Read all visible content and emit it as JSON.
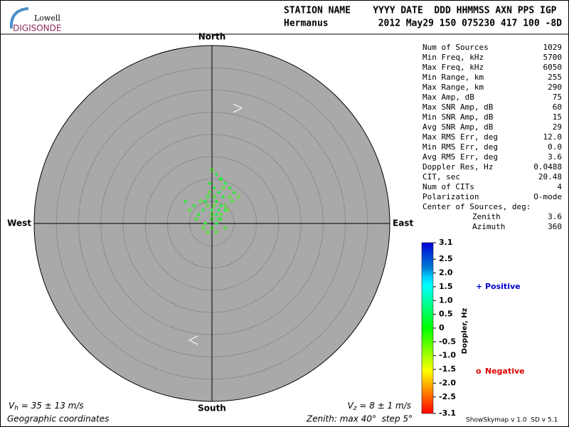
{
  "header": {
    "logo_top": "Lowell",
    "logo_bottom": "DIGISONDE",
    "columns_line": "STATION NAME    YYYY DATE  DDD HHMMSS AXN PPS IGP",
    "station": "Hermanus",
    "values_line": "2012 May29 150 075230 417 100 -8D"
  },
  "stats": [
    {
      "label": "Num of Sources",
      "value": "1029"
    },
    {
      "label": "Min Freq, kHz",
      "value": "5700"
    },
    {
      "label": "Max Freq, kHz",
      "value": "6050"
    },
    {
      "label": "Min Range, km",
      "value": "255"
    },
    {
      "label": "Max Range, km",
      "value": "290"
    },
    {
      "label": "Max Amp, dB",
      "value": "75"
    },
    {
      "label": "Max SNR Amp, dB",
      "value": "60"
    },
    {
      "label": "Min SNR Amp, dB",
      "value": "15"
    },
    {
      "label": "Avg SNR Amp, dB",
      "value": "29"
    },
    {
      "label": "Max RMS Err, deg",
      "value": "12.0"
    },
    {
      "label": "Min RMS Err, deg",
      "value": "0.0"
    },
    {
      "label": "Avg RMS Err, deg",
      "value": "3.6"
    },
    {
      "label": "Doppler Res, Hz",
      "value": "0.0488"
    },
    {
      "label": "CIT, sec",
      "value": "20.48"
    },
    {
      "label": "Num of CITs",
      "value": "4"
    },
    {
      "label": "Polarization",
      "value": "O-mode"
    }
  ],
  "center": {
    "title": "Center of Sources, deg:",
    "zenith_label": "Zenith",
    "zenith": "3.6",
    "azimuth_label": "Azimuth",
    "azimuth": "360"
  },
  "footer": {
    "vh_symbol": "V",
    "vh_sub": "h",
    "vh_text": " = 35 ± 13 m/s",
    "vz_symbol": "V",
    "vz_sub": "z",
    "vz_text": " = 8 ± 1 m/s",
    "coords": "Geographic coordinates",
    "zenith_note": "Zenith: max 40°  step 5°",
    "version": "ShowSkymap v 1.0  SD v 5.1"
  },
  "chart_data": {
    "type": "skymap",
    "directions": {
      "north": "North",
      "south": "South",
      "west": "West",
      "east": "East"
    },
    "rlim": [
      0,
      40
    ],
    "rticks": [
      5,
      10,
      15,
      20,
      25,
      30,
      35,
      40
    ],
    "x": [
      0,
      -1,
      1,
      2,
      -2,
      0.5,
      1.5,
      3,
      -3,
      2.5,
      -1.5,
      0,
      1,
      4,
      -4,
      2,
      -0.5,
      3.5,
      5,
      -5,
      1,
      0,
      2,
      -2.5,
      3,
      -1,
      0.5,
      4.5,
      1.5,
      -3.5,
      2.5,
      0,
      -1.5,
      3,
      1,
      -0.5,
      2,
      6,
      -6,
      1,
      3,
      0,
      2,
      -1,
      4,
      0.5,
      1.5,
      -2
    ],
    "y": [
      3,
      4,
      5,
      2,
      3,
      6,
      7,
      4,
      2,
      8,
      5,
      1,
      0,
      6,
      4,
      10,
      9,
      3,
      7,
      3,
      11,
      -1,
      1,
      5,
      9,
      -2,
      8,
      5,
      3,
      1,
      6,
      12,
      0,
      -1,
      2,
      7,
      4,
      6,
      5,
      -2,
      3,
      2,
      10,
      6,
      8,
      4,
      1,
      -1
    ],
    "doppler": [
      0.2,
      -0.3,
      0.1,
      -0.4,
      0.3,
      -0.2,
      0.2,
      -0.3,
      0.1,
      -0.4,
      0.2,
      -0.1,
      0.3,
      -0.3,
      0.2,
      -0.2,
      0.1,
      -0.5,
      0.2,
      -0.3,
      0.3,
      -0.2,
      0.1,
      -0.4,
      0.2,
      -0.3,
      0.1,
      -0.2,
      0.3,
      -0.1,
      0.2,
      -0.3,
      0.1,
      -0.2,
      0.4,
      -0.3,
      0.2,
      -0.4,
      0.1,
      -0.2,
      0.3,
      -0.3,
      0.2,
      -0.1,
      0.1,
      -0.4,
      0.2,
      -0.3
    ],
    "colorbar": {
      "label": "Doppler, Hz",
      "lim": [
        -3.1,
        3.1
      ],
      "ticks": [
        3.1,
        2.5,
        {
          "value": 2,
          "label": "2.0"
        },
        1.5,
        {
          "value": 1,
          "label": "1.0"
        },
        0.5,
        0,
        -0.5,
        {
          "value": -1,
          "label": "-1.0"
        },
        -1.5,
        {
          "value": -2,
          "label": "-2.0"
        },
        -2.5,
        -3.1
      ]
    },
    "series": [
      {
        "name": "Positive",
        "symbol": "+",
        "color": "#0000cc"
      },
      {
        "name": "Negative",
        "symbol": "o",
        "color": "#dd0000"
      }
    ]
  }
}
